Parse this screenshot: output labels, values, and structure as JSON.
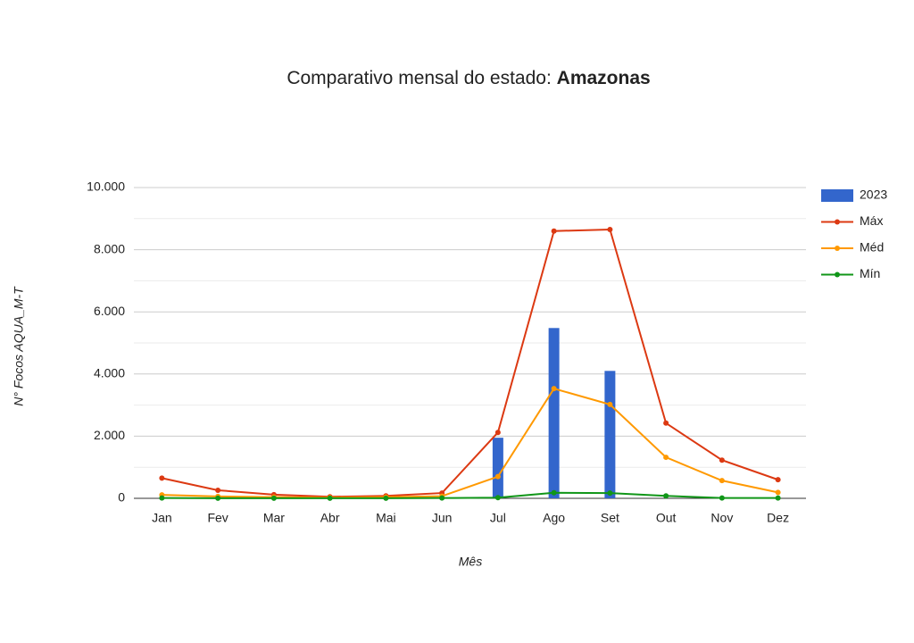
{
  "chart_data": {
    "type": "bar-line",
    "title": "Comparativo mensal do estado:",
    "title_state": "Amazonas",
    "x_label": "Mês",
    "y_label": "N° Focos AQUA_M-T",
    "categories": [
      "Jan",
      "Fev",
      "Mar",
      "Abr",
      "Mai",
      "Jun",
      "Jul",
      "Ago",
      "Set",
      "Out",
      "Nov",
      "Dez"
    ],
    "ylim": [
      0,
      10000
    ],
    "yticks": [
      0,
      {
        "value": 2000,
        "label": "2.000"
      },
      {
        "value": 4000,
        "label": "4.000"
      },
      {
        "value": 6000,
        "label": "6.000"
      },
      {
        "value": 8000,
        "label": "8.000"
      },
      {
        "value": 10000,
        "label": "10.000"
      }
    ],
    "minor_yticks": [
      1000,
      3000,
      5000,
      7000,
      9000
    ],
    "grid": true,
    "legend": "right",
    "series": [
      {
        "name": "2023",
        "kind": "bar",
        "color": "#3366cc",
        "values": [
          0,
          0,
          0,
          0,
          0,
          0,
          1950,
          5480,
          4100,
          null,
          null,
          null
        ]
      },
      {
        "name": "Máx",
        "kind": "line",
        "color": "#dc3912",
        "values": [
          650,
          260,
          120,
          50,
          80,
          170,
          2120,
          8600,
          8650,
          2420,
          1230,
          600
        ]
      },
      {
        "name": "Méd",
        "kind": "line",
        "color": "#ff9900",
        "values": [
          110,
          60,
          40,
          20,
          40,
          70,
          700,
          3530,
          3020,
          1320,
          570,
          190
        ]
      },
      {
        "name": "Mín",
        "kind": "line",
        "color": "#109618",
        "values": [
          10,
          5,
          5,
          5,
          5,
          10,
          20,
          180,
          170,
          80,
          10,
          10
        ]
      }
    ]
  }
}
